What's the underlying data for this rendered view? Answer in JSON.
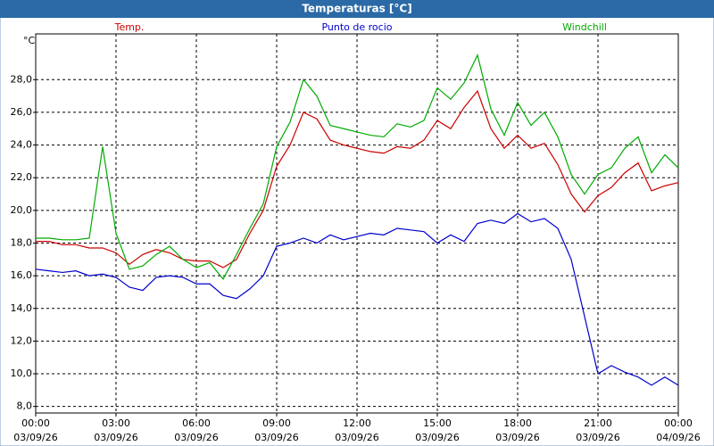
{
  "chart_data": {
    "type": "line",
    "title": "Temperaturas [°C]",
    "ylabel": "°C",
    "x": [
      0,
      0.5,
      1,
      1.5,
      2,
      2.5,
      3,
      3.5,
      4,
      4.5,
      5,
      5.5,
      6,
      6.5,
      7,
      7.5,
      8,
      8.5,
      9,
      9.5,
      10,
      10.5,
      11,
      11.5,
      12,
      12.5,
      13,
      13.5,
      14,
      14.5,
      15,
      15.5,
      16,
      16.5,
      17,
      17.5,
      18,
      18.5,
      19,
      19.5,
      20,
      20.5,
      21,
      21.5,
      22,
      22.5,
      23,
      23.5,
      24
    ],
    "series": [
      {
        "name": "Temp.",
        "color": "#cc0000",
        "values": [
          18.1,
          18.1,
          17.9,
          17.9,
          17.7,
          17.7,
          17.4,
          16.7,
          17.3,
          17.6,
          17.4,
          17.0,
          16.9,
          16.9,
          16.5,
          17.0,
          18.6,
          20.0,
          22.7,
          24.0,
          26.0,
          25.6,
          24.3,
          24.0,
          23.8,
          23.6,
          23.5,
          23.9,
          23.8,
          24.3,
          25.5,
          25.0,
          26.3,
          27.3,
          25.0,
          23.8,
          24.6,
          23.8,
          24.1,
          22.8,
          21.0,
          19.9,
          20.9,
          21.4,
          22.3,
          22.9,
          21.2,
          21.5,
          21.7
        ]
      },
      {
        "name": "Punto de rocio",
        "color": "#0000cc",
        "values": [
          16.4,
          16.3,
          16.2,
          16.3,
          16.0,
          16.1,
          15.9,
          15.3,
          15.1,
          15.9,
          16.0,
          15.9,
          15.5,
          15.5,
          14.8,
          14.6,
          15.2,
          16.0,
          17.8,
          18.0,
          18.3,
          18.0,
          18.5,
          18.2,
          18.4,
          18.6,
          18.5,
          18.9,
          18.8,
          18.7,
          18.0,
          18.5,
          18.1,
          19.2,
          19.4,
          19.2,
          19.8,
          19.3,
          19.5,
          18.9,
          17.0,
          13.5,
          10.0,
          10.5,
          10.1,
          9.8,
          9.3,
          9.8,
          9.3
        ]
      },
      {
        "name": "Windchill",
        "color": "#00aa00",
        "values": [
          18.3,
          18.3,
          18.2,
          18.2,
          18.3,
          23.9,
          18.6,
          16.4,
          16.6,
          17.3,
          17.8,
          17.0,
          16.5,
          16.8,
          15.8,
          17.3,
          18.9,
          20.4,
          23.9,
          25.4,
          28.0,
          27.0,
          25.2,
          25.0,
          24.8,
          24.6,
          24.5,
          25.3,
          25.1,
          25.5,
          27.5,
          26.8,
          27.8,
          29.5,
          26.2,
          24.6,
          26.6,
          25.2,
          26.0,
          24.5,
          22.2,
          21.0,
          22.2,
          22.6,
          23.8,
          24.5,
          22.3,
          23.4,
          22.6
        ]
      }
    ],
    "xlim": [
      0,
      24
    ],
    "xticks": [
      {
        "value": 0,
        "label": "00:00"
      },
      {
        "value": 3,
        "label": "03:00"
      },
      {
        "value": 6,
        "label": "06:00"
      },
      {
        "value": 9,
        "label": "09:00"
      },
      {
        "value": 12,
        "label": "12:00"
      },
      {
        "value": 15,
        "label": "15:00"
      },
      {
        "value": 18,
        "label": "18:00"
      },
      {
        "value": 21,
        "label": "21:00"
      },
      {
        "value": 24,
        "label": "00:00"
      }
    ],
    "xtick_dates": [
      "03/09/26",
      "03/09/26",
      "03/09/26",
      "03/09/26",
      "03/09/26",
      "03/09/26",
      "03/09/26",
      "03/09/26",
      "04/09/26"
    ],
    "ylim": [
      7.6,
      30.8
    ],
    "yticks": [
      {
        "value": 8,
        "label": "8,0"
      },
      {
        "value": 10,
        "label": "10,0"
      },
      {
        "value": 12,
        "label": "12,0"
      },
      {
        "value": 14,
        "label": "14,0"
      },
      {
        "value": 16,
        "label": "16,0"
      },
      {
        "value": 18,
        "label": "18,0"
      },
      {
        "value": 20,
        "label": "20,0"
      },
      {
        "value": 22,
        "label": "22,0"
      },
      {
        "value": 24,
        "label": "24,0"
      },
      {
        "value": 26,
        "label": "26,0"
      },
      {
        "value": 28,
        "label": "28,0"
      }
    ],
    "grid": true
  }
}
